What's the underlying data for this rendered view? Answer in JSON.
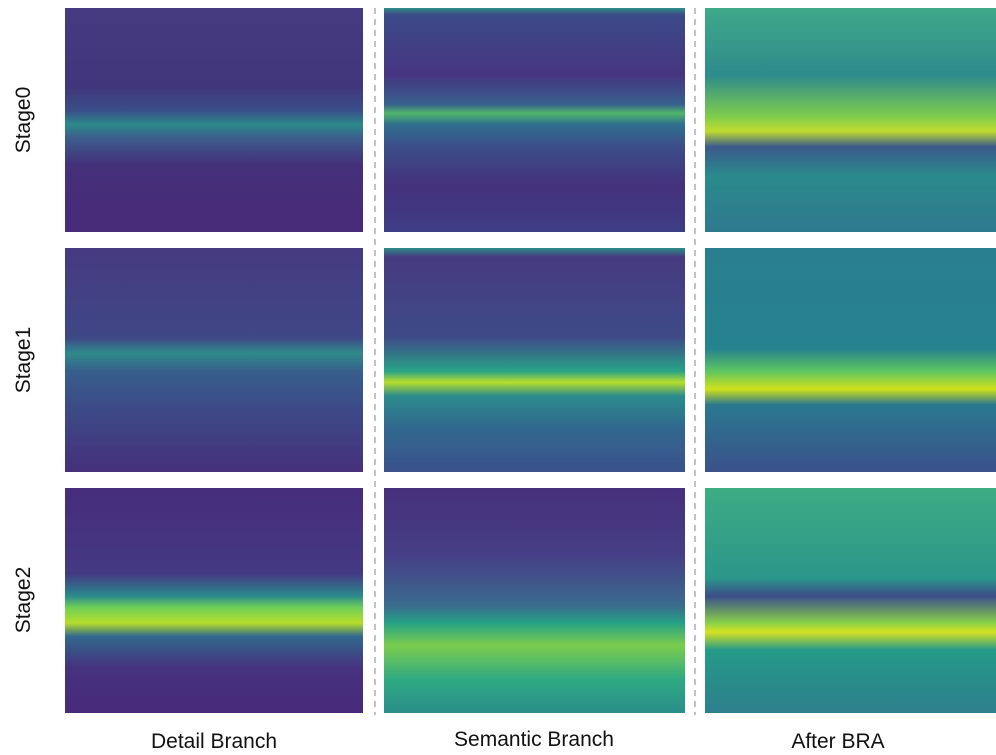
{
  "row_labels": [
    "Stage0",
    "Stage1",
    "Stage2"
  ],
  "column_labels": [
    "Detail Branch",
    "Semantic Branch",
    "After BRA"
  ]
}
